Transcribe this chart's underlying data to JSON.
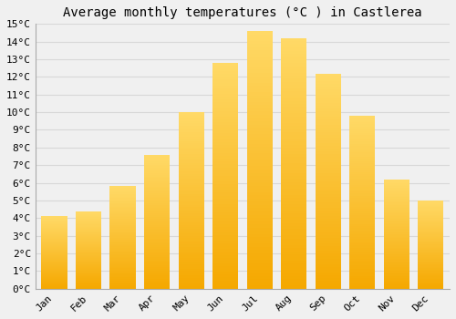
{
  "months": [
    "Jan",
    "Feb",
    "Mar",
    "Apr",
    "May",
    "Jun",
    "Jul",
    "Aug",
    "Sep",
    "Oct",
    "Nov",
    "Dec"
  ],
  "temperatures": [
    4.1,
    4.4,
    5.8,
    7.6,
    10.0,
    12.8,
    14.6,
    14.2,
    12.2,
    9.8,
    6.2,
    5.0
  ],
  "title": "Average monthly temperatures (°C ) in Castlerea",
  "ylim": [
    0,
    15
  ],
  "ytick_step": 1,
  "bar_color_bottom": "#F5A800",
  "bar_color_top": "#FFD966",
  "background_color": "#f0f0f0",
  "grid_color": "#d8d8d8",
  "title_fontsize": 10,
  "tick_fontsize": 8,
  "title_font": "monospace",
  "tick_font": "monospace",
  "bar_width": 0.75
}
